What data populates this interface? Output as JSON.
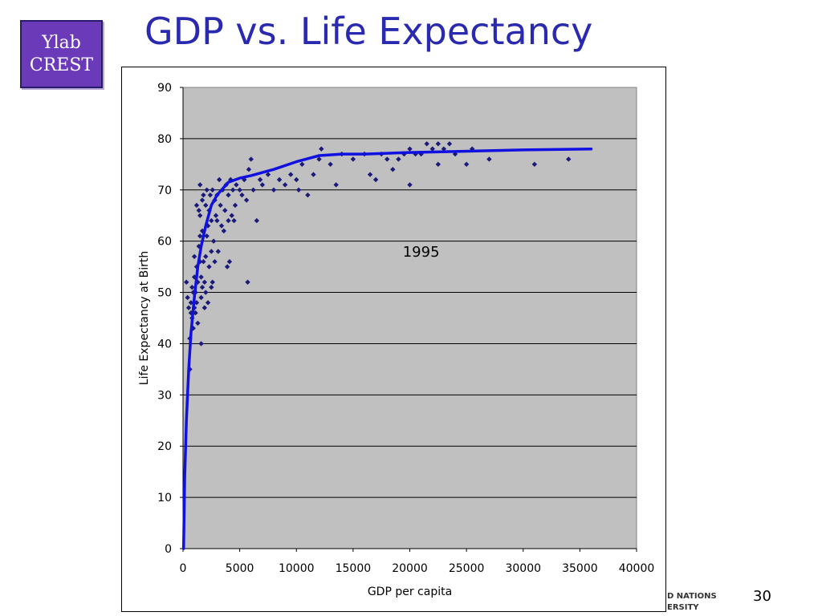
{
  "logo": {
    "line1": "Ylab",
    "line2": "CREST"
  },
  "slide": {
    "title": "GDP vs. Life Expectancy",
    "page_number": "30"
  },
  "footer": {
    "org_line1": "D NATIONS",
    "org_line2": "ERSITY"
  },
  "colors": {
    "title": "#2a2ab0",
    "plot_bg": "#c0c0c0",
    "points": "#1a1a7a",
    "curve": "#1010e0",
    "logo_bg": "#6a3ab8"
  },
  "chart_data": {
    "type": "scatter",
    "title": "",
    "annotation": "1995",
    "xlabel": "GDP per capita",
    "ylabel": "Life Expectancy at Birth",
    "xlim": [
      0,
      40000
    ],
    "ylim": [
      0,
      90
    ],
    "xticks": [
      0,
      5000,
      10000,
      15000,
      20000,
      25000,
      30000,
      35000,
      40000
    ],
    "yticks": [
      0,
      10,
      20,
      30,
      40,
      50,
      60,
      70,
      80,
      90
    ],
    "grid": "horizontal",
    "legend": "none",
    "series": [
      {
        "kind": "points",
        "points": [
          [
            300,
            52
          ],
          [
            400,
            49
          ],
          [
            500,
            47
          ],
          [
            600,
            35
          ],
          [
            600,
            41
          ],
          [
            700,
            48
          ],
          [
            700,
            46
          ],
          [
            800,
            45
          ],
          [
            800,
            51
          ],
          [
            900,
            43
          ],
          [
            900,
            50
          ],
          [
            1000,
            47
          ],
          [
            1000,
            53
          ],
          [
            1000,
            57
          ],
          [
            1100,
            46
          ],
          [
            1100,
            50
          ],
          [
            1200,
            48
          ],
          [
            1200,
            55
          ],
          [
            1200,
            67
          ],
          [
            1300,
            44
          ],
          [
            1300,
            52
          ],
          [
            1400,
            59
          ],
          [
            1400,
            66
          ],
          [
            1500,
            56
          ],
          [
            1500,
            61
          ],
          [
            1500,
            65
          ],
          [
            1500,
            71
          ],
          [
            1600,
            40
          ],
          [
            1600,
            49
          ],
          [
            1600,
            53
          ],
          [
            1700,
            51
          ],
          [
            1700,
            62
          ],
          [
            1700,
            68
          ],
          [
            1800,
            56
          ],
          [
            1800,
            69
          ],
          [
            1900,
            47
          ],
          [
            1900,
            52
          ],
          [
            2000,
            50
          ],
          [
            2000,
            57
          ],
          [
            2000,
            67
          ],
          [
            2100,
            61
          ],
          [
            2100,
            70
          ],
          [
            2200,
            48
          ],
          [
            2200,
            63
          ],
          [
            2300,
            55
          ],
          [
            2300,
            66
          ],
          [
            2400,
            69
          ],
          [
            2500,
            51
          ],
          [
            2500,
            58
          ],
          [
            2500,
            64
          ],
          [
            2600,
            52
          ],
          [
            2600,
            70
          ],
          [
            2700,
            60
          ],
          [
            2800,
            56
          ],
          [
            2800,
            68
          ],
          [
            2900,
            65
          ],
          [
            3000,
            64
          ],
          [
            3000,
            69
          ],
          [
            3100,
            58
          ],
          [
            3200,
            72
          ],
          [
            3300,
            67
          ],
          [
            3400,
            63
          ],
          [
            3500,
            70
          ],
          [
            3600,
            62
          ],
          [
            3700,
            66
          ],
          [
            3800,
            71
          ],
          [
            3900,
            55
          ],
          [
            4000,
            64
          ],
          [
            4000,
            69
          ],
          [
            4100,
            56
          ],
          [
            4200,
            72
          ],
          [
            4300,
            65
          ],
          [
            4400,
            70
          ],
          [
            4500,
            64
          ],
          [
            4600,
            67
          ],
          [
            4700,
            71
          ],
          [
            5000,
            70
          ],
          [
            5200,
            69
          ],
          [
            5400,
            72
          ],
          [
            5600,
            68
          ],
          [
            5700,
            52
          ],
          [
            5800,
            74
          ],
          [
            6000,
            76
          ],
          [
            6200,
            70
          ],
          [
            6500,
            64
          ],
          [
            6800,
            72
          ],
          [
            7000,
            71
          ],
          [
            7500,
            73
          ],
          [
            8000,
            70
          ],
          [
            8500,
            72
          ],
          [
            9000,
            71
          ],
          [
            9500,
            73
          ],
          [
            10000,
            72
          ],
          [
            10200,
            70
          ],
          [
            10500,
            75
          ],
          [
            11000,
            69
          ],
          [
            11500,
            73
          ],
          [
            12000,
            76
          ],
          [
            12200,
            78
          ],
          [
            13000,
            75
          ],
          [
            13500,
            71
          ],
          [
            14000,
            77
          ],
          [
            15000,
            76
          ],
          [
            16000,
            77
          ],
          [
            16500,
            73
          ],
          [
            17000,
            72
          ],
          [
            17500,
            77
          ],
          [
            18000,
            76
          ],
          [
            18500,
            74
          ],
          [
            19000,
            76
          ],
          [
            19500,
            77
          ],
          [
            20000,
            71
          ],
          [
            20000,
            78
          ],
          [
            20500,
            77
          ],
          [
            21000,
            77
          ],
          [
            21500,
            79
          ],
          [
            22000,
            78
          ],
          [
            22500,
            75
          ],
          [
            22500,
            79
          ],
          [
            23000,
            78
          ],
          [
            23500,
            79
          ],
          [
            24000,
            77
          ],
          [
            25000,
            75
          ],
          [
            25500,
            78
          ],
          [
            27000,
            76
          ],
          [
            31000,
            75
          ],
          [
            34000,
            76
          ]
        ]
      },
      {
        "kind": "trend",
        "points": [
          [
            50,
            0
          ],
          [
            150,
            14
          ],
          [
            300,
            25
          ],
          [
            500,
            35
          ],
          [
            700,
            42
          ],
          [
            1000,
            49
          ],
          [
            1300,
            55
          ],
          [
            1600,
            59
          ],
          [
            2000,
            63
          ],
          [
            2500,
            67
          ],
          [
            3000,
            69
          ],
          [
            4000,
            71.5
          ],
          [
            5000,
            72.3
          ],
          [
            6000,
            72.8
          ],
          [
            8000,
            74
          ],
          [
            10000,
            75.5
          ],
          [
            12000,
            76.7
          ],
          [
            14000,
            77
          ],
          [
            16000,
            77
          ],
          [
            20000,
            77.3
          ],
          [
            24000,
            77.5
          ],
          [
            30000,
            77.8
          ],
          [
            36000,
            78
          ]
        ]
      }
    ]
  }
}
